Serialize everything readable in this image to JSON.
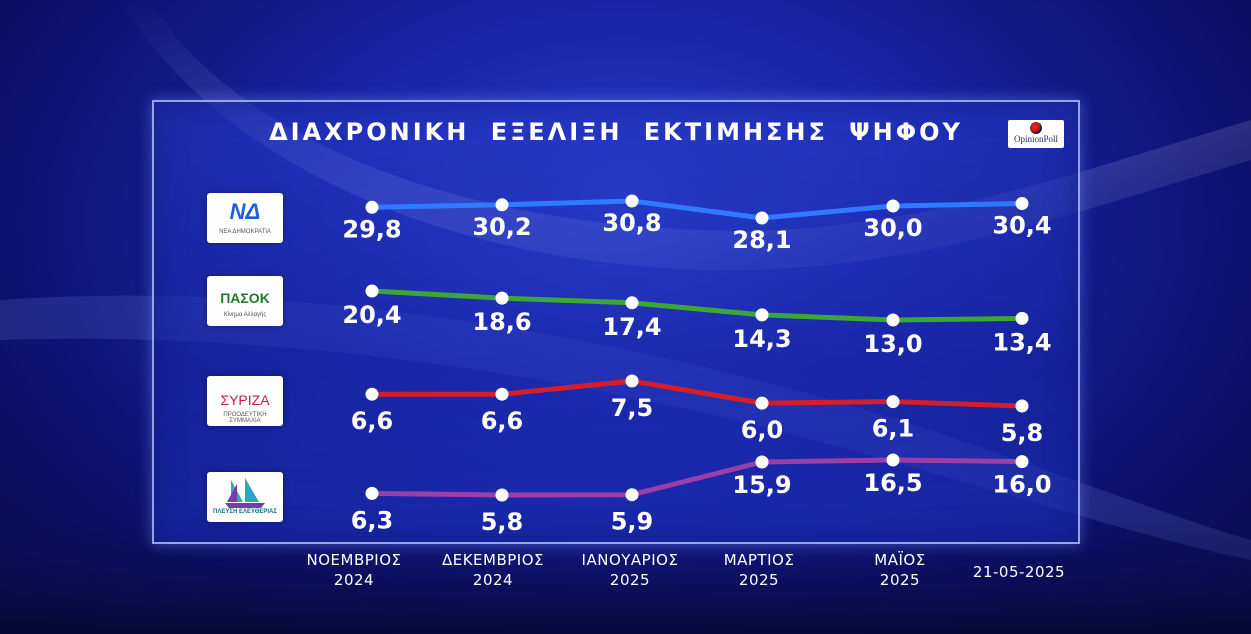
{
  "title": "ΔΙΑΧΡΟΝΙΚΗ ΕΞΕΛΙΞΗ ΕΚΤΙΜΗΣΗΣ ΨΗΦΟΥ",
  "source_logo": "OpinionPoll",
  "colors": {
    "nd": "#2f7bff",
    "pasok": "#3aa832",
    "syriza": "#d21f2a",
    "plefsi": "#9a3fa8",
    "background": "#1a24a8"
  },
  "parties": [
    {
      "logo_text": "ΝΔ",
      "logo_sub": "ΝΕΑ ΔΗΜΟΚΡΑΤΙΑ",
      "logo_color": "#1f5fd6"
    },
    {
      "logo_text": "ΠΑΣΟΚ",
      "logo_sub": "Κίνημα Αλλαγής",
      "logo_color": "#1f7a2a"
    },
    {
      "logo_text": "ΣΥΡΙΖΑ",
      "logo_sub": "ΠΡΟΟΔΕΥΤΙΚΗ ΣΥΜΜΑΧΙΑ",
      "logo_color": "#c2185b"
    },
    {
      "logo_text": "ΠΛΕΥΣΗ ΕΛΕΥΘΕΡΙΑΣ",
      "logo_sub": "",
      "logo_color": "#1b8aa8"
    }
  ],
  "chart_data": {
    "type": "line",
    "title": "ΔΙΑΧΡΟΝΙΚΗ ΕΞΕΛΙΞΗ ΕΚΤΙΜΗΣΗΣ ΨΗΦΟΥ",
    "categories": [
      [
        "ΝΟΕΜΒΡΙΟΣ",
        "2024"
      ],
      [
        "ΔΕΚΕΜΒΡΙΟΣ",
        "2024"
      ],
      [
        "ΙΑΝΟΥΑΡΙΟΣ",
        "2025"
      ],
      [
        "ΜΑΡΤΙΟΣ",
        "2025"
      ],
      [
        "ΜΑΪΟΣ",
        "2025"
      ],
      [
        "21-05-2025",
        ""
      ]
    ],
    "series": [
      {
        "values": [
          29.8,
          30.2,
          30.8,
          28.1,
          30.0,
          30.4
        ],
        "labels": [
          "29,8",
          "30,2",
          "30,8",
          "28,1",
          "30,0",
          "30,4"
        ],
        "color": "#2f7bff",
        "label_position": "below"
      },
      {
        "values": [
          20.4,
          18.6,
          17.4,
          14.3,
          13.0,
          13.4
        ],
        "labels": [
          "20,4",
          "18,6",
          "17,4",
          "14,3",
          "13,0",
          "13,4"
        ],
        "color": "#3aa832",
        "label_position": "below"
      },
      {
        "values": [
          6.6,
          6.6,
          7.5,
          6.0,
          6.1,
          5.8
        ],
        "labels": [
          "6,6",
          "6,6",
          "7,5",
          "6,0",
          "6,1",
          "5,8"
        ],
        "color": "#d21f2a",
        "label_position": "below"
      },
      {
        "values": [
          6.3,
          5.8,
          5.9,
          15.9,
          16.5,
          16.0
        ],
        "labels": [
          "6,3",
          "5,8",
          "5,9",
          "15,9",
          "16,5",
          "16,0"
        ],
        "color": "#9a3fa8",
        "label_position": "mixed"
      }
    ],
    "legend": "party logos on left",
    "grid": false
  }
}
